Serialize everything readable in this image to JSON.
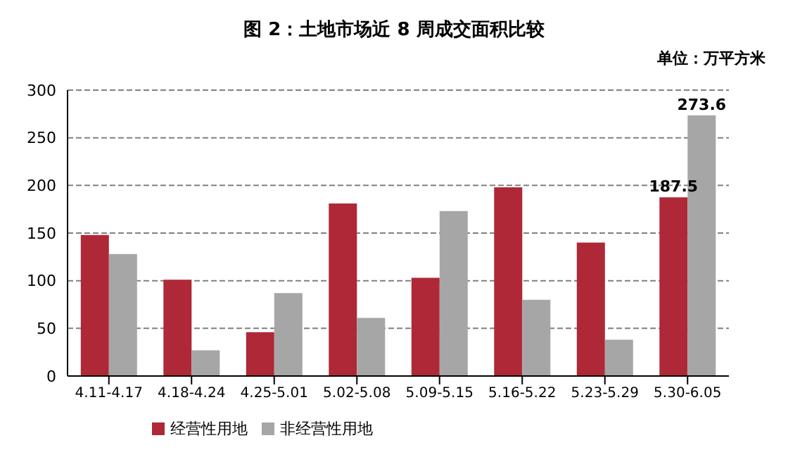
{
  "chart_data": {
    "type": "bar",
    "title": "图 2：土地市场近 8 周成交面积比较",
    "annotations": [
      "单位：万平方米"
    ],
    "categories": [
      "4.11-4.17",
      "4.18-4.24",
      "4.25-5.01",
      "5.02-5.08",
      "5.09-5.15",
      "5.16-5.22",
      "5.23-5.29",
      "5.30-6.05"
    ],
    "series": [
      {
        "name": "经营性用地",
        "color": "#ae2838",
        "values": [
          148,
          101,
          46,
          181,
          103,
          198,
          140,
          187.5
        ],
        "value_labels": [
          null,
          null,
          null,
          null,
          null,
          null,
          null,
          "187.5"
        ]
      },
      {
        "name": "非经营性用地",
        "color": "#a6a6a6",
        "values": [
          128,
          27,
          87,
          61,
          173,
          80,
          38,
          273.6
        ],
        "value_labels": [
          null,
          null,
          null,
          null,
          null,
          null,
          null,
          "273.6"
        ]
      }
    ],
    "ylim": [
      0,
      300
    ],
    "yticks": [
      0,
      50,
      100,
      150,
      200,
      250,
      300
    ],
    "grid": "y",
    "legend": "bottom"
  }
}
